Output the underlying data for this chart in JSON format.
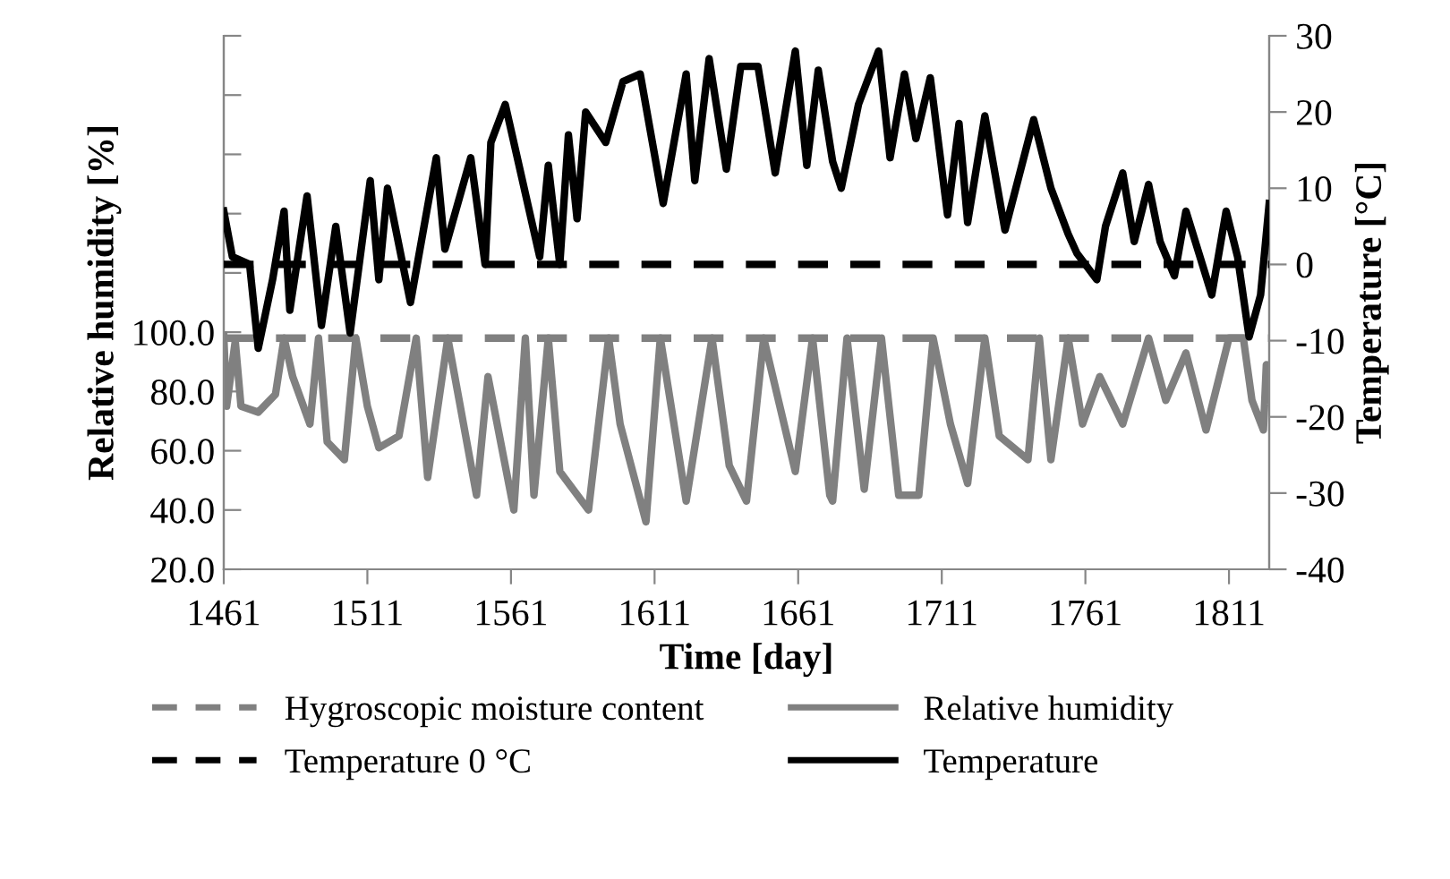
{
  "chart_data": {
    "type": "line",
    "xlabel": "Time [day]",
    "ylabel": "Relative humidity [%]",
    "y2label": "Temperature [°C]",
    "xlim": [
      1461,
      1825
    ],
    "xticks": [
      1461,
      1511,
      1561,
      1611,
      1661,
      1711,
      1761,
      1811
    ],
    "ylim": [
      20,
      200
    ],
    "yticks": [
      {
        "value": 20,
        "label": "20.0"
      },
      {
        "value": 40,
        "label": "40.0"
      },
      {
        "value": 60,
        "label": "60.0"
      },
      {
        "value": 80,
        "label": "80.0"
      },
      {
        "value": 100,
        "label": "100.0"
      },
      {
        "value": 120,
        "label": null
      },
      {
        "value": 140,
        "label": null
      },
      {
        "value": 160,
        "label": null
      },
      {
        "value": 180,
        "label": null
      },
      {
        "value": 200,
        "label": null
      }
    ],
    "y2lim": [
      -40,
      30
    ],
    "y2ticks": [
      -40,
      -30,
      -20,
      -10,
      0,
      10,
      20,
      30
    ],
    "grid": false,
    "legend": "bottom",
    "marker": "none",
    "series": [
      {
        "name": "Hygroscopic moisture content",
        "color": "#808080",
        "line_style": "dashed",
        "axis": "y",
        "x": [
          1461,
          1825
        ],
        "values": [
          98,
          98
        ]
      },
      {
        "name": "Relative humidity",
        "color": "#808080",
        "line_style": "solid",
        "axis": "y",
        "x": [
          1461,
          1462,
          1465,
          1467,
          1473,
          1479,
          1482,
          1485,
          1491,
          1494,
          1497,
          1503,
          1507,
          1511,
          1515,
          1522,
          1528,
          1532,
          1539,
          1549,
          1553,
          1562,
          1566,
          1569,
          1574,
          1578,
          1588,
          1595,
          1599,
          1608,
          1613,
          1622,
          1631,
          1637,
          1643,
          1649,
          1660,
          1666,
          1672,
          1673,
          1678,
          1684,
          1690,
          1696,
          1703,
          1708,
          1714,
          1720,
          1726,
          1731,
          1741,
          1745,
          1749,
          1755,
          1760,
          1766,
          1774,
          1783,
          1789,
          1796,
          1803,
          1811,
          1816,
          1819,
          1823,
          1824,
          1825
        ],
        "values": [
          99,
          75,
          97,
          75,
          73,
          79,
          98,
          85,
          69,
          98,
          63,
          57,
          98,
          75,
          61,
          65,
          98,
          51,
          98,
          45,
          85,
          40,
          98,
          45,
          98,
          53,
          40,
          98,
          69,
          36,
          98,
          43,
          98,
          55,
          43,
          98,
          53,
          98,
          45,
          43,
          98,
          47,
          98,
          45,
          45,
          98,
          69,
          49,
          98,
          65,
          57,
          98,
          57,
          98,
          69,
          85,
          69,
          98,
          77,
          93,
          67,
          98,
          98,
          77,
          67,
          89,
          77
        ]
      },
      {
        "name": "Temperature 0 °C",
        "color": "#000000",
        "line_style": "dashed",
        "axis": "y2",
        "x": [
          1461,
          1825
        ],
        "values": [
          0,
          0
        ]
      },
      {
        "name": "Temperature",
        "color": "#000000",
        "line_style": "solid",
        "axis": "y2",
        "x": [
          1461,
          1464,
          1470,
          1473,
          1478,
          1482,
          1484,
          1490,
          1495,
          1500,
          1505,
          1512,
          1515,
          1518,
          1526,
          1535,
          1538,
          1547,
          1552,
          1554,
          1559,
          1571,
          1574,
          1578,
          1581,
          1584,
          1587,
          1594,
          1600,
          1606,
          1614,
          1622,
          1625,
          1630,
          1636,
          1641,
          1647,
          1653,
          1660,
          1664,
          1668,
          1673,
          1676,
          1682,
          1689,
          1693,
          1698,
          1702,
          1707,
          1713,
          1717,
          1720,
          1726,
          1733,
          1743,
          1749,
          1755,
          1758,
          1765,
          1768,
          1774,
          1778,
          1783,
          1787,
          1792,
          1796,
          1805,
          1810,
          1814,
          1818,
          1822,
          1825
        ],
        "values": [
          7,
          1,
          0,
          -11,
          -2,
          7,
          -6,
          9,
          -8,
          5,
          -9,
          11,
          -2,
          10,
          -5,
          14,
          2,
          14,
          0,
          16,
          21,
          1,
          13,
          0,
          17,
          6,
          20,
          16,
          24,
          25,
          8,
          25,
          11,
          27,
          12.5,
          26,
          26,
          12,
          28,
          13,
          25.5,
          13.5,
          10,
          21,
          28,
          14,
          25,
          16.5,
          24.5,
          6.5,
          18.5,
          5.5,
          19.5,
          4.5,
          19,
          10,
          4,
          1.5,
          -2,
          5,
          12,
          3,
          10.5,
          3,
          -1.5,
          7,
          -4,
          7,
          1,
          -9.5,
          -4,
          8
        ]
      }
    ]
  }
}
